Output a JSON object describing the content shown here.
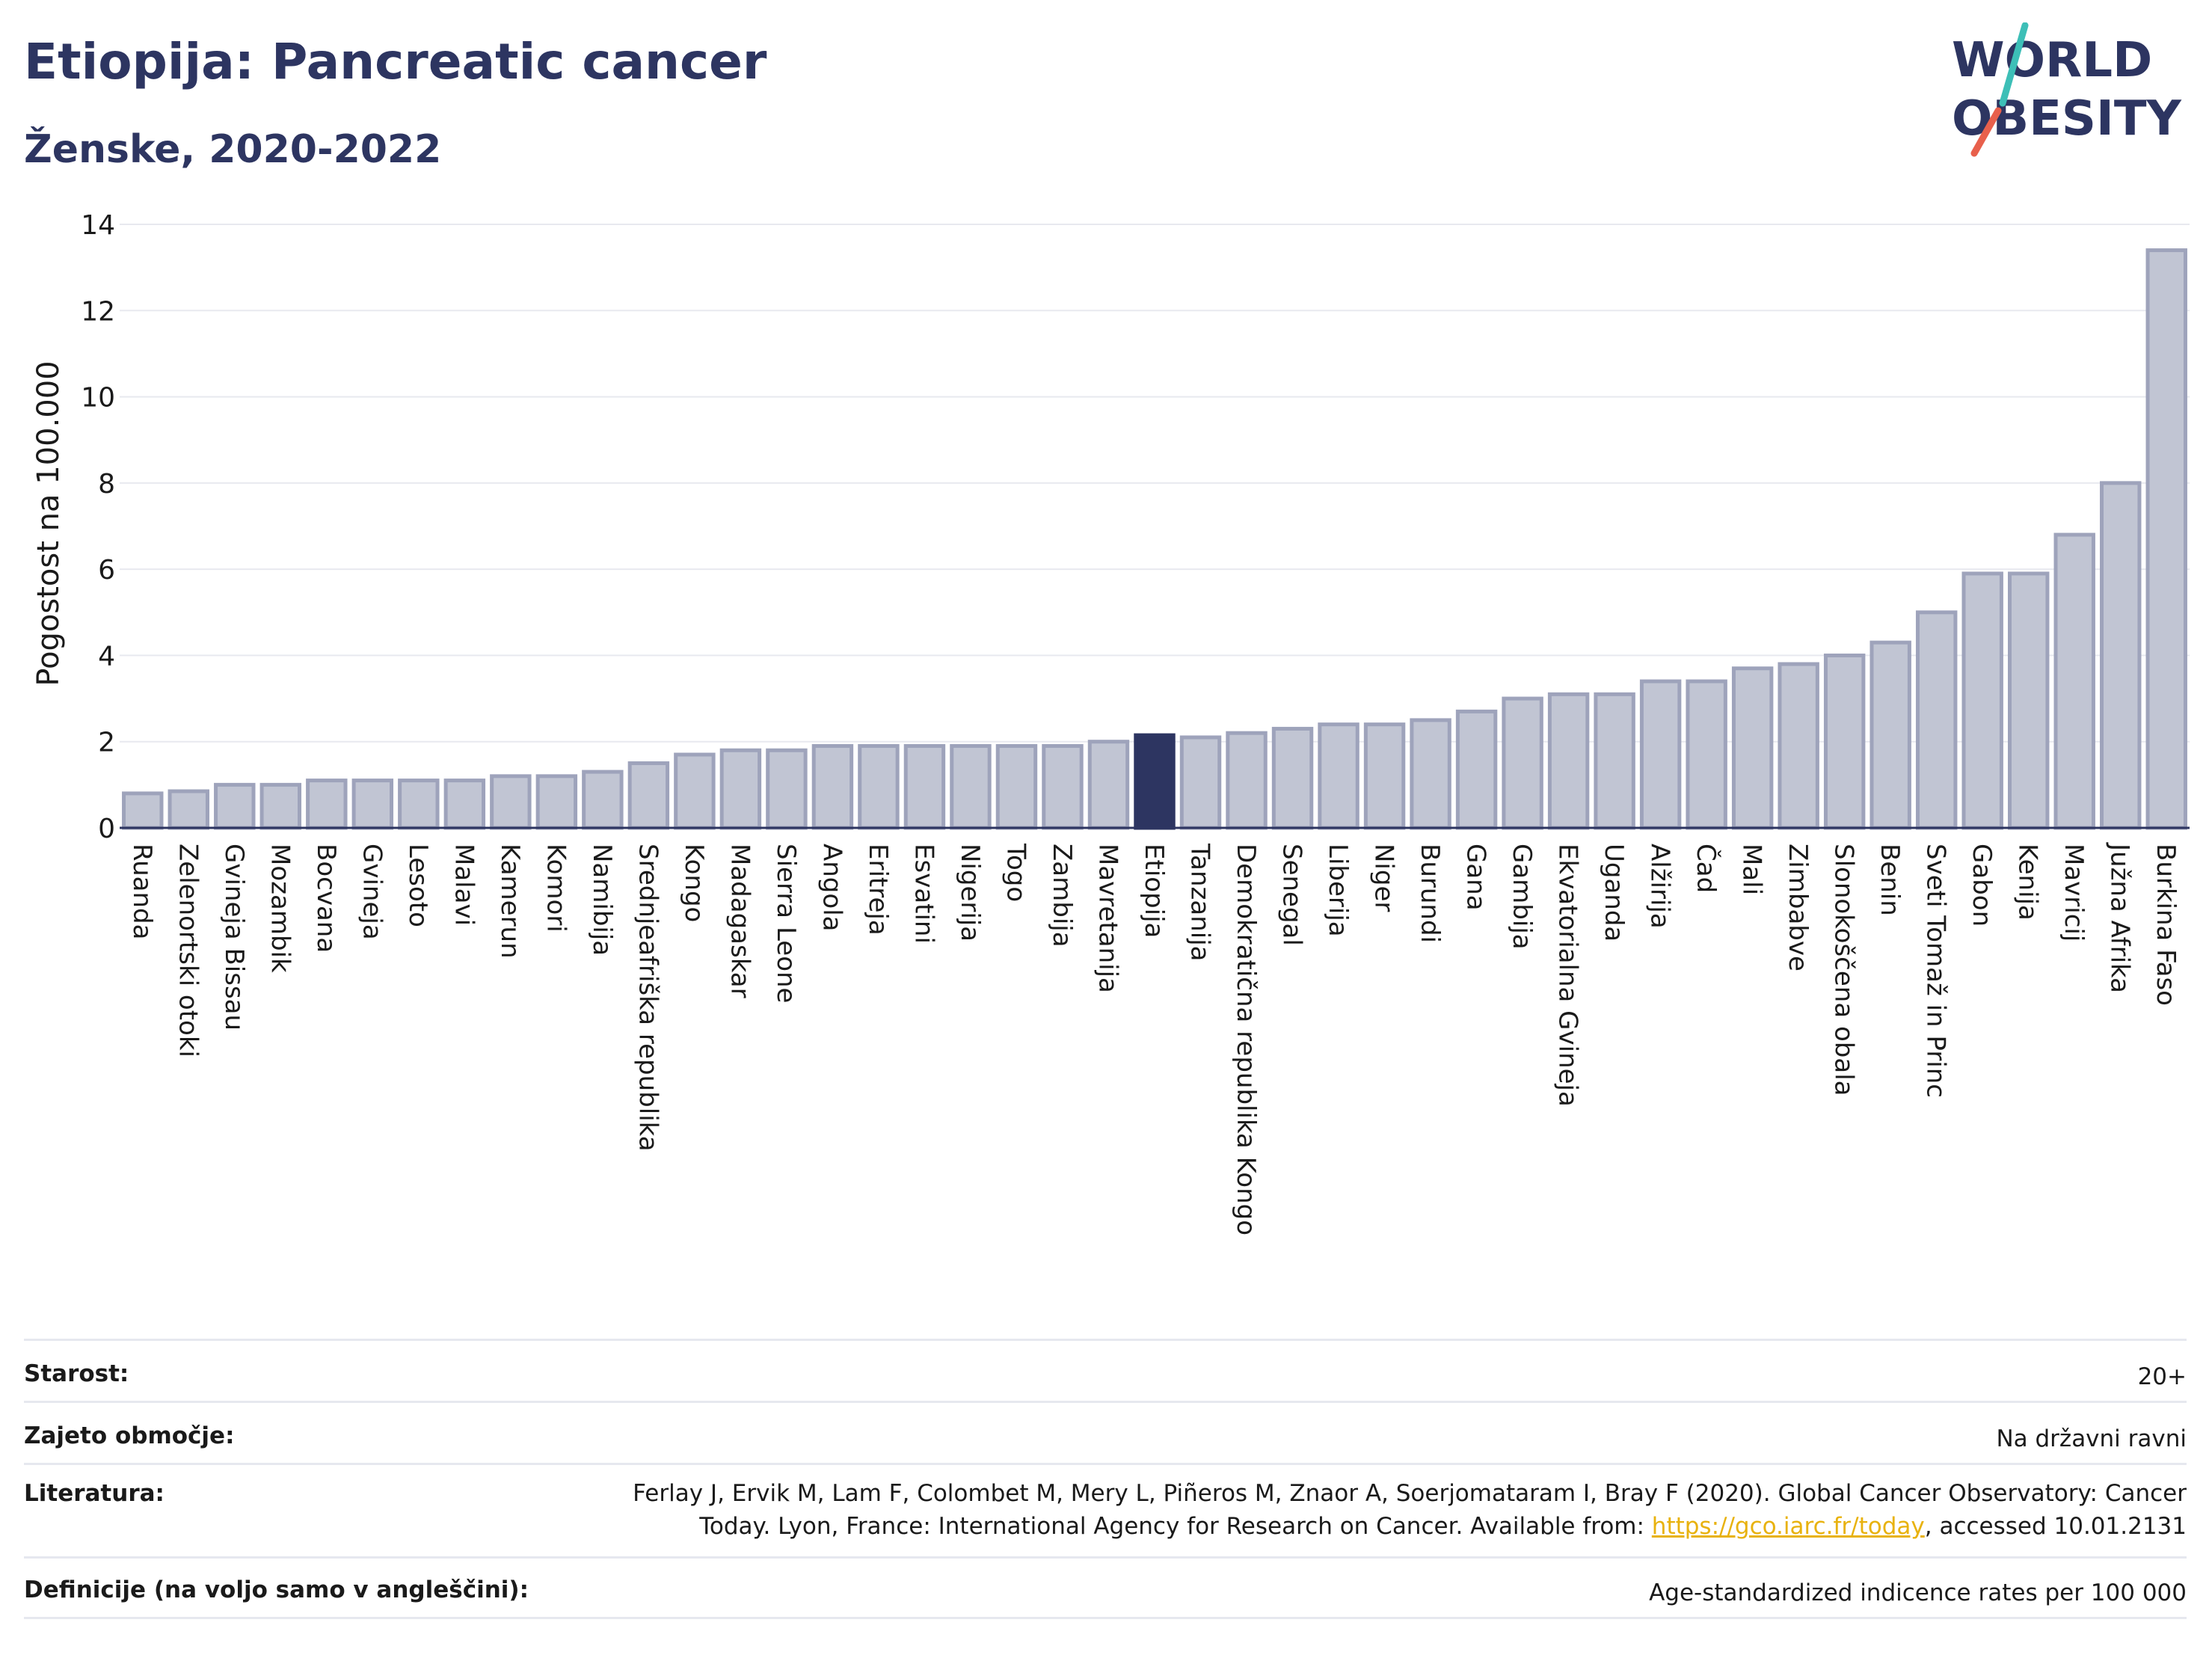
{
  "header": {
    "title": "Etiopija: Pancreatic cancer",
    "subtitle": "Ženske, 2020-2022",
    "logo_line1": "WORLD",
    "logo_line2": "OBESITY"
  },
  "chart_data": {
    "type": "bar",
    "ylabel": "Pogostost na 100.000",
    "ylim": [
      0,
      14
    ],
    "yticks": [
      "0",
      "2",
      "4",
      "6",
      "8",
      "10",
      "12",
      "14"
    ],
    "grid": true,
    "highlight": "Etiopija",
    "bar_color": "#c1c5d3",
    "bar_edge_color": "#9ea3bb",
    "highlight_color": "#2d3561",
    "categories": [
      "Ruanda",
      "Zelenortski otoki",
      "Gvineja Bissau",
      "Mozambik",
      "Bocvana",
      "Gvineja",
      "Lesoto",
      "Malavi",
      "Kamerun",
      "Komori",
      "Namibija",
      "Srednjeafriška republika",
      "Kongo",
      "Madagaskar",
      "Sierra Leone",
      "Angola",
      "Eritreja",
      "Esvatini",
      "Nigerija",
      "Togo",
      "Zambija",
      "Mavretanija",
      "Etiopija",
      "Tanzanija",
      "Demokratična republika Kongo",
      "Senegal",
      "Liberija",
      "Niger",
      "Burundi",
      "Gana",
      "Gambija",
      "Ekvatorialna Gvineja",
      "Uganda",
      "Alžirija",
      "Čad",
      "Mali",
      "Zimbabve",
      "Slonokoščena obala",
      "Benin",
      "Sveti Tomaž in Princ",
      "Gabon",
      "Kenija",
      "Mavricij",
      "Južna Afrika",
      "Burkina Faso"
    ],
    "values": [
      0.8,
      0.85,
      1.0,
      1.0,
      1.1,
      1.1,
      1.1,
      1.1,
      1.2,
      1.2,
      1.3,
      1.5,
      1.7,
      1.8,
      1.8,
      1.9,
      1.9,
      1.9,
      1.9,
      1.9,
      1.9,
      2.0,
      2.15,
      2.1,
      2.2,
      2.3,
      2.4,
      2.4,
      2.5,
      2.7,
      3.0,
      3.1,
      3.1,
      3.4,
      3.4,
      3.7,
      3.8,
      4.0,
      4.3,
      5.0,
      5.9,
      5.9,
      6.8,
      8.0,
      13.4
    ]
  },
  "info": {
    "age_label": "Starost:",
    "age_value": "20+",
    "coverage_label": "Zajeto območje:",
    "coverage_value": "Na državni ravni",
    "lit_label": "Literatura:",
    "lit_line1": "Ferlay J, Ervik M, Lam F, Colombet M, Mery L, Piñeros M, Znaor A, Soerjomataram I, Bray F (2020). Global Cancer Observatory: Cancer",
    "lit_line2_pre": "Today. Lyon, France: International Agency for Research on Cancer. Available from: ",
    "lit_link": "https://gco.iarc.fr/today",
    "lit_line2_post": ", accessed 10.01.2131",
    "def_label": "Definicije (na voljo samo v angleščini):",
    "def_value": "Age-standardized indicence rates per 100 000"
  }
}
